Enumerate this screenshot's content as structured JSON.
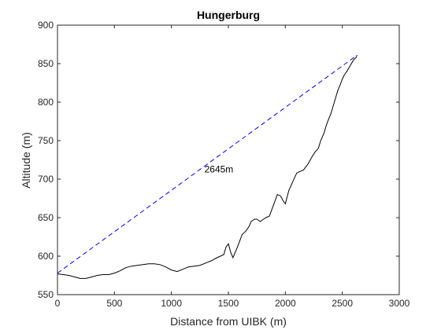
{
  "chart_data": {
    "type": "line",
    "title": "Hungerburg",
    "xlabel": "Distance from UIBK (m)",
    "ylabel": "Altitude (m)",
    "xlim": [
      0,
      3000
    ],
    "ylim": [
      550,
      900
    ],
    "xticks": [
      0,
      500,
      1000,
      1500,
      2000,
      2500,
      3000
    ],
    "yticks": [
      550,
      600,
      650,
      700,
      750,
      800,
      850,
      900
    ],
    "grid": false,
    "annotation": "2645m",
    "series": [
      {
        "style": "solid",
        "color": "#000000",
        "x": [
          0,
          50,
          100,
          150,
          200,
          250,
          300,
          350,
          400,
          450,
          500,
          550,
          600,
          650,
          700,
          750,
          800,
          850,
          900,
          950,
          1000,
          1050,
          1100,
          1150,
          1200,
          1250,
          1300,
          1350,
          1400,
          1430,
          1460,
          1480,
          1500,
          1520,
          1540,
          1560,
          1580,
          1600,
          1620,
          1650,
          1680,
          1700,
          1730,
          1750,
          1780,
          1800,
          1830,
          1860,
          1880,
          1900,
          1930,
          1960,
          1980,
          2000,
          2030,
          2060,
          2100,
          2130,
          2160,
          2200,
          2230,
          2260,
          2290,
          2310,
          2340,
          2360,
          2380,
          2400,
          2420,
          2440,
          2460,
          2480,
          2500,
          2520,
          2540,
          2560,
          2580,
          2600,
          2620,
          2630
        ],
        "y": [
          577,
          576,
          575,
          573,
          571,
          571,
          573,
          575,
          576,
          576,
          578,
          581,
          585,
          587,
          588,
          589,
          590,
          590,
          589,
          586,
          582,
          580,
          583,
          586,
          587,
          588,
          591,
          594,
          598,
          600,
          602,
          612,
          616,
          605,
          598,
          605,
          612,
          620,
          628,
          632,
          638,
          645,
          648,
          648,
          645,
          647,
          650,
          652,
          660,
          668,
          680,
          678,
          672,
          668,
          685,
          695,
          708,
          710,
          712,
          720,
          728,
          735,
          740,
          750,
          760,
          770,
          778,
          785,
          795,
          805,
          815,
          822,
          830,
          836,
          840,
          845,
          850,
          855,
          858,
          861
        ]
      },
      {
        "style": "dashed",
        "color": "#0000ff",
        "x": [
          0,
          2630
        ],
        "y": [
          578,
          861
        ]
      }
    ]
  }
}
